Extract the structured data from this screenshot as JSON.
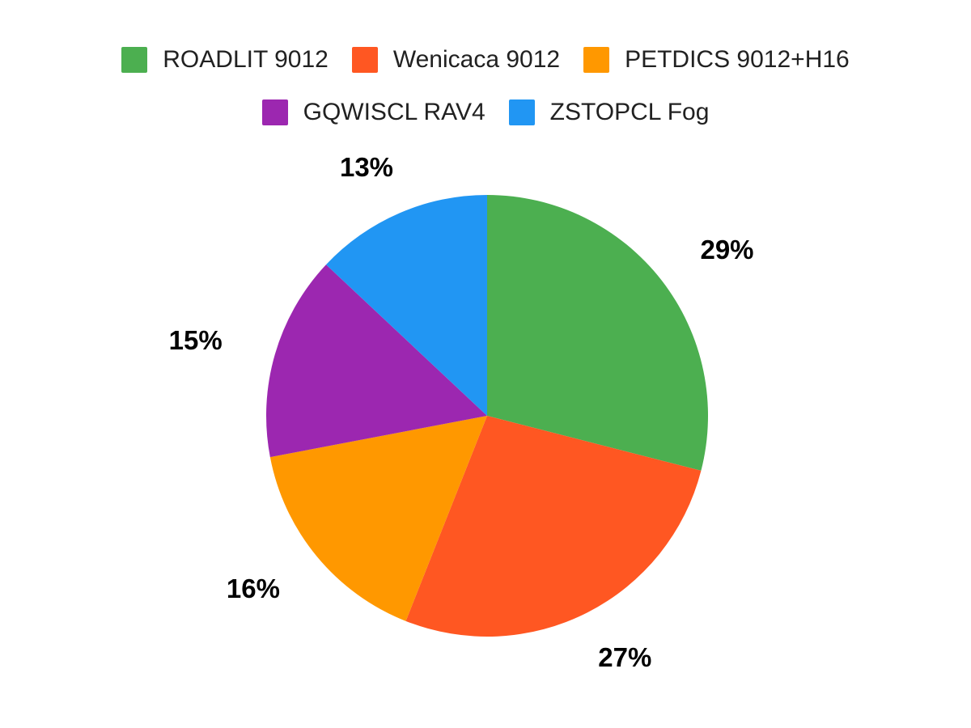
{
  "chart_data": {
    "type": "pie",
    "title": "",
    "categories": [
      "ROADLIT 9012",
      "Wenicaca 9012",
      "PETDICS 9012+H16",
      "GQWISCL RAV4",
      "ZSTOPCL Fog"
    ],
    "values": [
      29,
      27,
      16,
      15,
      13
    ],
    "slice_labels": [
      "29%",
      "27%",
      "16%",
      "15%",
      "13%"
    ],
    "colors": [
      "#4CAF50",
      "#FF5722",
      "#FF9800",
      "#9C27B0",
      "#2196F3"
    ],
    "start_angle_deg": 0,
    "direction": "clockwise",
    "legend_position": "top",
    "legend_rows": [
      [
        0,
        1,
        2
      ],
      [
        3,
        4
      ]
    ],
    "label_color": "#000000",
    "legend_text_color": "#212121",
    "background": "#FFFFFF"
  }
}
